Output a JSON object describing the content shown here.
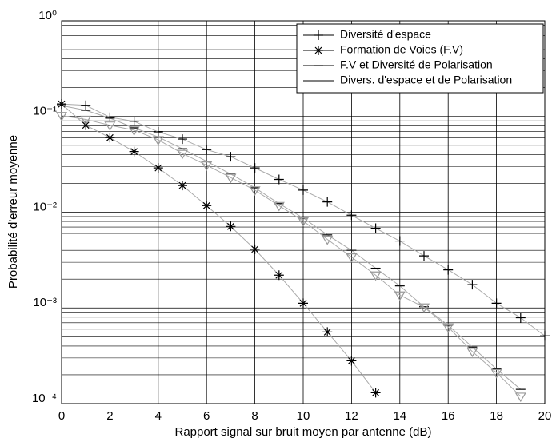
{
  "chart_data": {
    "type": "line",
    "xlabel": "Rapport signal sur bruit moyen par antenne (dB)",
    "ylabel": "Probabilité  d'erreur moyenne",
    "x": [
      0,
      1,
      2,
      3,
      4,
      5,
      6,
      7,
      8,
      9,
      10,
      11,
      12,
      13,
      14,
      15,
      16,
      17,
      18,
      19,
      20
    ],
    "series": [
      {
        "name": "Diversité d'espace",
        "color": "#000000",
        "marker": "plus",
        "values": [
          0.135,
          0.131,
          0.098,
          0.089,
          0.069,
          0.058,
          0.045,
          0.038,
          0.029,
          0.022,
          0.017,
          0.0128,
          0.0093,
          0.0068,
          0.005,
          0.0035,
          0.0025,
          0.00175,
          0.00112,
          0.00079,
          0.00051
        ]
      },
      {
        "name": "Formation de Voies (F.V)",
        "color": "#000000",
        "marker": "star",
        "values": [
          0.135,
          0.081,
          0.06,
          0.043,
          0.029,
          0.019,
          0.0117,
          0.0071,
          0.0041,
          0.0022,
          0.00112,
          0.00056,
          0.00028,
          0.00013,
          null,
          null,
          null,
          null,
          null,
          null,
          null
        ]
      },
      {
        "name": "F.V et Diversité de Polarisation",
        "color": "#000000",
        "marker": "dash",
        "values": [
          0.13,
          0.116,
          0.096,
          0.076,
          0.061,
          0.046,
          0.034,
          0.025,
          0.018,
          0.0123,
          0.0087,
          0.0058,
          0.004,
          0.0026,
          0.0017,
          0.00103,
          0.00066,
          0.00039,
          0.00023,
          0.000141,
          null
        ]
      },
      {
        "name": "Divers. d'espace et de Polarisation",
        "color": "#000000",
        "marker": "triangle",
        "values": [
          0.102,
          0.093,
          0.081,
          0.072,
          0.057,
          0.041,
          0.031,
          0.023,
          0.017,
          0.0117,
          0.0081,
          0.0052,
          0.0034,
          0.0022,
          0.00136,
          0.00102,
          0.00063,
          0.00035,
          0.00021,
          0.000119,
          null
        ]
      }
    ],
    "xlim": [
      0,
      20
    ],
    "xticks": [
      0,
      2,
      4,
      6,
      8,
      10,
      12,
      14,
      16,
      18,
      20
    ],
    "ylim": [
      0.0001,
      1
    ],
    "yticks": [
      {
        "value": 0.0001,
        "label": "10⁻⁴"
      },
      {
        "value": 0.001,
        "label": "10⁻³"
      },
      {
        "value": 0.01,
        "label": "10⁻²"
      },
      {
        "value": 0.1,
        "label": "10⁻¹"
      },
      {
        "value": 1,
        "label": "10⁰"
      }
    ],
    "ylog": true,
    "grid": true,
    "legend": "upper right"
  }
}
